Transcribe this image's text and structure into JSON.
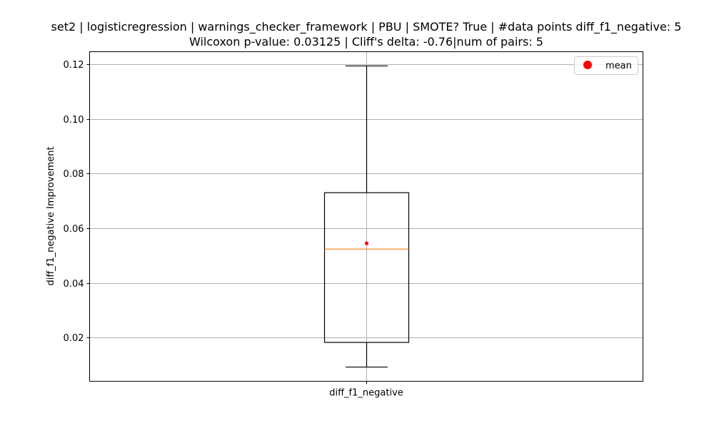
{
  "chart_data": {
    "type": "box",
    "title_line1": "set2 | logisticregression | warnings_checker_framework | PBU | SMOTE? True | #data points diff_f1_negative: 5",
    "title_line2": "Wilcoxon p-value: 0.03125 | Cliff's delta: -0.76|num of pairs: 5",
    "xlabel": "",
    "ylabel": "diff_f1_negative Improvement",
    "categories": [
      "diff_f1_negative"
    ],
    "box": {
      "whisker_low": 0.0093,
      "q1": 0.0183,
      "median": 0.0524,
      "q3": 0.073,
      "whisker_high": 0.1193,
      "mean": 0.0545
    },
    "ylim": [
      0.0041,
      0.1245
    ],
    "yticks": [
      0.02,
      0.04,
      0.06,
      0.08,
      0.1,
      0.12
    ],
    "ytick_labels": [
      "0.02",
      "0.04",
      "0.06",
      "0.08",
      "0.10",
      "0.12"
    ],
    "legend": {
      "label": "mean",
      "placement": "top-right"
    },
    "grid": true,
    "colors": {
      "box": "#000000",
      "median": "#ff7f0e",
      "mean": "#ff0000",
      "grid": "#b0b0b0"
    }
  }
}
